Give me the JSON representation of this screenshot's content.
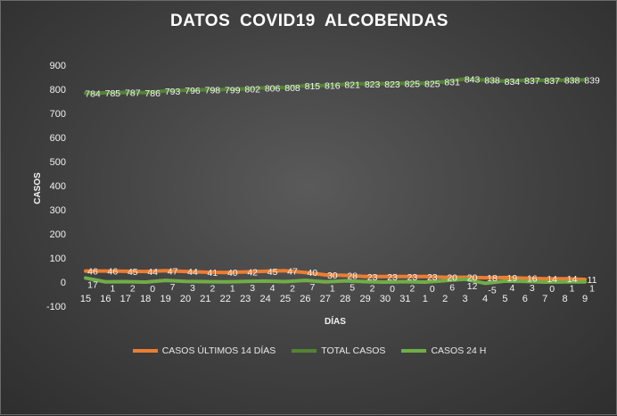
{
  "chart_data": {
    "type": "line",
    "title": "DATOS  COVID19  ALCOBENDAS",
    "xlabel": "DÍAS",
    "ylabel": "CASOS",
    "ylim": [
      -100,
      900
    ],
    "yticks": [
      -100,
      0,
      100,
      200,
      300,
      400,
      500,
      600,
      700,
      800,
      900
    ],
    "grid": false,
    "legend_position": "bottom",
    "categories": [
      "15",
      "16",
      "17",
      "18",
      "19",
      "20",
      "21",
      "22",
      "23",
      "24",
      "25",
      "26",
      "27",
      "28",
      "29",
      "30",
      "31",
      "1",
      "2",
      "3",
      "4",
      "5",
      "6",
      "7",
      "8",
      "9"
    ],
    "series": [
      {
        "name": "CASOS ÚLTIMOS 14 DÍAS",
        "color": "#ed7d31",
        "values": [
          46,
          46,
          45,
          44,
          47,
          44,
          41,
          40,
          42,
          45,
          47,
          40,
          30,
          28,
          23,
          23,
          23,
          23,
          20,
          20,
          18,
          19,
          16,
          14,
          14,
          11
        ]
      },
      {
        "name": "TOTAL CASOS",
        "color": "#548235",
        "values": [
          784,
          785,
          787,
          786,
          793,
          796,
          798,
          799,
          802,
          806,
          808,
          815,
          816,
          821,
          823,
          823,
          825,
          825,
          831,
          843,
          838,
          834,
          837,
          837,
          838,
          839
        ]
      },
      {
        "name": "CASOS 24 H",
        "color": "#70ad47",
        "values": [
          17,
          1,
          2,
          0,
          7,
          3,
          2,
          1,
          3,
          4,
          2,
          7,
          1,
          5,
          2,
          0,
          2,
          0,
          6,
          12,
          -5,
          4,
          3,
          0,
          1,
          1
        ]
      }
    ]
  }
}
